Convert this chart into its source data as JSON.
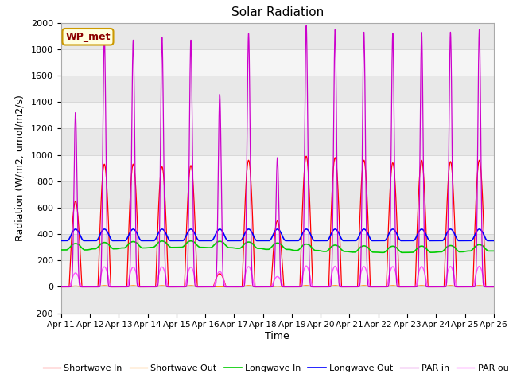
{
  "title": "Solar Radiation",
  "xlabel": "Time",
  "ylabel": "Radiation (W/m2, umol/m2/s)",
  "ylim": [
    -200,
    2000
  ],
  "station_label": "WP_met",
  "x_tick_labels": [
    "Apr 11",
    "Apr 12",
    "Apr 13",
    "Apr 14",
    "Apr 15",
    "Apr 16",
    "Apr 17",
    "Apr 18",
    "Apr 19",
    "Apr 20",
    "Apr 21",
    "Apr 22",
    "Apr 23",
    "Apr 24",
    "Apr 25",
    "Apr 26"
  ],
  "legend_entries": [
    "Shortwave In",
    "Shortwave Out",
    "Longwave In",
    "Longwave Out",
    "PAR in",
    "PAR out"
  ],
  "line_colors": [
    "#ff0000",
    "#ff8800",
    "#00cc00",
    "#0000ff",
    "#cc00cc",
    "#ff55ff"
  ],
  "plot_bg_color": "#e8e8e8",
  "n_days": 15,
  "points_per_day": 288,
  "sw_in_peaks": [
    650,
    930,
    930,
    910,
    920,
    100,
    960,
    500,
    990,
    980,
    960,
    940,
    960,
    950,
    960
  ],
  "par_in_peaks": [
    1320,
    1900,
    1870,
    1890,
    1870,
    1460,
    1920,
    980,
    1980,
    1950,
    1930,
    1920,
    1930,
    1930,
    1950
  ]
}
